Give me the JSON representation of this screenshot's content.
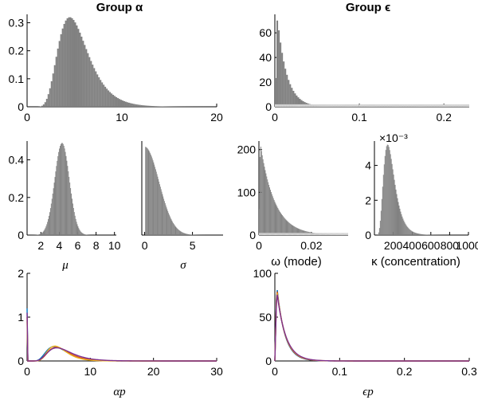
{
  "colors": {
    "hist": "#808080",
    "hist_light": "#d3d3d3",
    "lines": [
      "#0072bd",
      "#d95319",
      "#edb120",
      "#7e2f8e",
      "#77ac30",
      "#4dbeee"
    ]
  },
  "chart_data": [
    {
      "id": "alpha_group",
      "type": "bar",
      "title": "Group α",
      "xlim": [
        0,
        20
      ],
      "ylim": [
        0,
        0.33
      ],
      "xticks": [
        "0",
        "10",
        "20"
      ],
      "yticks": [
        "0",
        "0.1",
        "0.2",
        "0.3"
      ],
      "series": [
        {
          "shape": "lognormal",
          "mode": 4.5,
          "peak": 0.32,
          "sigma": 0.35
        }
      ]
    },
    {
      "id": "epsilon_group",
      "type": "bar",
      "title": "Group ϵ",
      "xlim": [
        0,
        0.23
      ],
      "ylim": [
        0,
        75
      ],
      "xticks": [
        "0",
        "0.1",
        "0.2"
      ],
      "yticks": [
        "0",
        "20",
        "40",
        "60"
      ],
      "series": [
        {
          "shape": "decay",
          "peak": 73,
          "mode": 0.003,
          "scale": 0.011
        },
        {
          "shape": "flat",
          "value": 2
        }
      ]
    },
    {
      "id": "mu",
      "type": "bar",
      "xlabel": "μ",
      "xlim": [
        0.5,
        10.2
      ],
      "ylim": [
        0,
        0.5
      ],
      "xticks": [
        "2",
        "4",
        "6",
        "8",
        "10"
      ],
      "yticks": [
        "0",
        "0.2",
        "0.4"
      ],
      "series": [
        {
          "shape": "normal",
          "mean": 4.3,
          "sd": 0.8,
          "peak": 0.49
        }
      ]
    },
    {
      "id": "sigma",
      "type": "bar",
      "xlabel": "σ",
      "xlim": [
        -0.3,
        8.2
      ],
      "ylim": [
        0,
        0.5
      ],
      "xticks": [
        "0",
        "5"
      ],
      "yticks": [],
      "series": [
        {
          "shape": "halfnormal",
          "peak": 0.47,
          "scale": 1.5,
          "start": 0.05
        }
      ]
    },
    {
      "id": "omega",
      "type": "bar",
      "xlabel": "ω (mode)",
      "xlim": [
        0,
        0.034
      ],
      "ylim": [
        0,
        220
      ],
      "xticks": [
        "0",
        "0.02"
      ],
      "yticks": [
        "0",
        "100",
        "200"
      ],
      "series": [
        {
          "shape": "decay",
          "peak": 215,
          "mode": 0.0005,
          "scale": 0.0055
        },
        {
          "shape": "flat",
          "value": 5
        }
      ]
    },
    {
      "id": "kappa",
      "type": "bar",
      "xlabel": "κ (concentration)",
      "exponent": "×10⁻³",
      "xlim": [
        0,
        1000
      ],
      "ylim": [
        0,
        5.4
      ],
      "xticks": [
        "200",
        "400",
        "600",
        "800",
        "1000"
      ],
      "yticks": [
        "0",
        "2",
        "4"
      ],
      "series": [
        {
          "shape": "lognormal",
          "mode": 140,
          "peak": 5.2,
          "sigma": 0.42,
          "start": 30
        }
      ]
    },
    {
      "id": "alpha_p",
      "type": "line",
      "xlabel": "αp",
      "xlim": [
        0,
        30
      ],
      "ylim": [
        0,
        2
      ],
      "xticks": [
        "0",
        "10",
        "20",
        "30"
      ],
      "yticks": [
        "0",
        "1",
        "2"
      ],
      "series": [
        {
          "shape": "lognormal",
          "mode": 4.3,
          "peak": 0.33,
          "sigma": 0.38,
          "spike": 1.2
        },
        {
          "shape": "lognormal",
          "mode": 4.6,
          "peak": 0.31,
          "sigma": 0.36,
          "spike": 1.0
        },
        {
          "shape": "lognormal",
          "mode": 4.4,
          "peak": 0.34,
          "sigma": 0.34,
          "spike": 0.9
        },
        {
          "shape": "lognormal",
          "mode": 4.7,
          "peak": 0.3,
          "sigma": 0.4,
          "spike": 1.1
        }
      ]
    },
    {
      "id": "epsilon_p",
      "type": "line",
      "xlabel": "ϵp",
      "xlim": [
        0,
        0.3
      ],
      "ylim": [
        0,
        100
      ],
      "xticks": [
        "0",
        "0.1",
        "0.2",
        "0.3"
      ],
      "yticks": [
        "0",
        "50",
        "100"
      ],
      "series": [
        {
          "shape": "decay",
          "peak": 86,
          "mode": 0.003,
          "scale": 0.012
        },
        {
          "shape": "decay",
          "peak": 84,
          "mode": 0.003,
          "scale": 0.0125
        },
        {
          "shape": "decay",
          "peak": 82,
          "mode": 0.003,
          "scale": 0.013
        },
        {
          "shape": "decay",
          "peak": 80,
          "mode": 0.003,
          "scale": 0.0135
        }
      ]
    }
  ]
}
